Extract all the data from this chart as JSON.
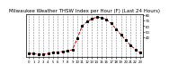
{
  "title": "Milwaukee Weather THSW Index per Hour (F) (Last 24 Hours)",
  "background_color": "#ffffff",
  "plot_bg_color": "#ffffff",
  "grid_color": "#888888",
  "line_color": "#cc0000",
  "marker_color": "#000000",
  "x_values": [
    0,
    1,
    2,
    3,
    4,
    5,
    6,
    7,
    8,
    9,
    10,
    11,
    12,
    13,
    14,
    15,
    16,
    17,
    18,
    19,
    20,
    21,
    22,
    23
  ],
  "y_values": [
    12,
    11,
    10,
    10,
    11,
    13,
    14,
    15,
    16,
    18,
    38,
    60,
    68,
    73,
    76,
    75,
    72,
    65,
    55,
    45,
    35,
    26,
    18,
    13
  ],
  "ylim": [
    5,
    82
  ],
  "xlim": [
    -0.5,
    23.5
  ],
  "yticks": [
    40,
    50,
    60,
    70,
    80
  ],
  "ytick_labels": [
    "40",
    "50",
    "60",
    "70",
    "80"
  ],
  "xticks": [
    0,
    1,
    2,
    3,
    4,
    5,
    6,
    7,
    8,
    9,
    10,
    11,
    12,
    13,
    14,
    15,
    16,
    17,
    18,
    19,
    20,
    21,
    22,
    23
  ],
  "xtick_labels": [
    "0",
    "1",
    "2",
    "3",
    "4",
    "5",
    "6",
    "7",
    "8",
    "9",
    "10",
    "11",
    "12",
    "13",
    "14",
    "15",
    "16",
    "17",
    "18",
    "19",
    "20",
    "21",
    "22",
    "23"
  ],
  "title_fontsize": 4.0,
  "tick_fontsize": 2.8,
  "line_width": 0.7,
  "marker_size": 1.2,
  "grid_linewidth": 0.4,
  "spine_linewidth": 0.5
}
